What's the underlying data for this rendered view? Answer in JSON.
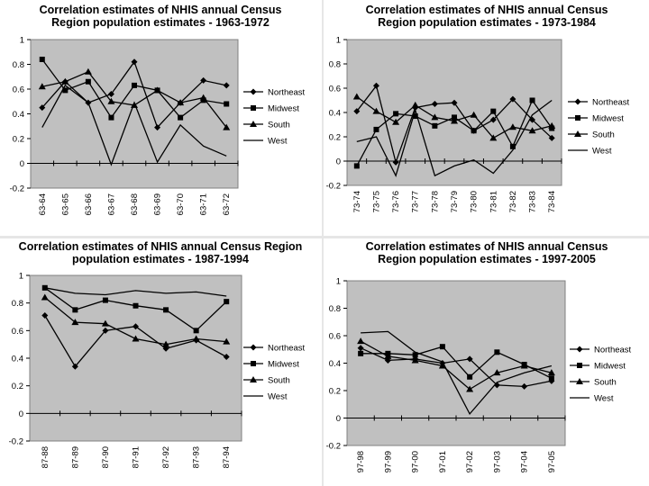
{
  "chart_data": [
    {
      "type": "line",
      "title_lines": [
        "Correlation estimates of NHIS annual Census",
        "Region population estimates - 1963-1972"
      ],
      "categories": [
        "63-64",
        "63-65",
        "63-66",
        "63-67",
        "63-68",
        "63-69",
        "63-70",
        "63-71",
        "63-72"
      ],
      "ylim": [
        -0.2,
        1
      ],
      "yticks": [
        "-0.2",
        "0",
        "0.2",
        "0.4",
        "0.6",
        "0.8",
        "1"
      ],
      "series": [
        {
          "name": "Northeast",
          "marker": "diamond",
          "values": [
            0.45,
            0.66,
            0.49,
            0.56,
            0.82,
            0.29,
            0.49,
            0.67,
            0.63
          ]
        },
        {
          "name": "Midwest",
          "marker": "square",
          "values": [
            0.84,
            0.59,
            0.66,
            0.37,
            0.63,
            0.59,
            0.37,
            0.51,
            0.48
          ]
        },
        {
          "name": "South",
          "marker": "triangle",
          "values": [
            0.62,
            0.66,
            0.74,
            0.5,
            0.47,
            0.59,
            0.49,
            0.53,
            0.29
          ]
        },
        {
          "name": "West",
          "marker": "none",
          "values": [
            0.29,
            0.63,
            0.49,
            -0.01,
            0.49,
            0.01,
            0.31,
            0.14,
            0.06
          ]
        }
      ]
    },
    {
      "type": "line",
      "title_lines": [
        "Correlation estimates of NHIS annual Census",
        "Region population estimates - 1973-1984"
      ],
      "categories": [
        "73-74",
        "73-75",
        "73-76",
        "73-77",
        "73-78",
        "73-79",
        "73-80",
        "73-81",
        "73-82",
        "73-83",
        "73-84"
      ],
      "ylim": [
        -0.2,
        1
      ],
      "yticks": [
        "-0.2",
        "0",
        "0.2",
        "0.4",
        "0.6",
        "0.8",
        "1"
      ],
      "series": [
        {
          "name": "Northeast",
          "marker": "diamond",
          "values": [
            0.41,
            0.62,
            -0.01,
            0.44,
            0.47,
            0.48,
            0.25,
            0.34,
            0.51,
            0.34,
            0.19
          ]
        },
        {
          "name": "Midwest",
          "marker": "square",
          "values": [
            -0.04,
            0.26,
            0.39,
            0.37,
            0.29,
            0.36,
            0.25,
            0.41,
            0.12,
            0.5,
            0.27
          ]
        },
        {
          "name": "South",
          "marker": "triangle",
          "values": [
            0.53,
            0.41,
            0.32,
            0.46,
            0.36,
            0.33,
            0.38,
            0.19,
            0.28,
            0.25,
            0.29
          ]
        },
        {
          "name": "West",
          "marker": "none",
          "values": [
            0.16,
            0.2,
            -0.12,
            0.42,
            -0.12,
            -0.04,
            0.01,
            -0.1,
            0.09,
            0.38,
            0.5
          ]
        }
      ]
    },
    {
      "type": "line",
      "title_lines": [
        "Correlation estimates of NHIS annual Census Region",
        "population estimates - 1987-1994"
      ],
      "categories": [
        "87-88",
        "87-89",
        "87-90",
        "87-91",
        "87-92",
        "87-93",
        "87-94"
      ],
      "ylim": [
        -0.2,
        1
      ],
      "yticks": [
        "-0.2",
        "0",
        "0.2",
        "0.4",
        "0.6",
        "0.8",
        "1"
      ],
      "series": [
        {
          "name": "Northeast",
          "marker": "diamond",
          "values": [
            0.71,
            0.34,
            0.6,
            0.63,
            0.47,
            0.53,
            0.41
          ]
        },
        {
          "name": "Midwest",
          "marker": "square",
          "values": [
            0.91,
            0.75,
            0.82,
            0.78,
            0.75,
            0.6,
            0.81
          ]
        },
        {
          "name": "South",
          "marker": "triangle",
          "values": [
            0.84,
            0.66,
            0.65,
            0.54,
            0.5,
            0.54,
            0.52
          ]
        },
        {
          "name": "West",
          "marker": "none",
          "values": [
            0.91,
            0.87,
            0.86,
            0.89,
            0.87,
            0.88,
            0.85
          ]
        }
      ]
    },
    {
      "type": "line",
      "title_lines": [
        "Correlation estimates of NHIS annual Census",
        "Region population estimates - 1997-2005"
      ],
      "categories": [
        "97-98",
        "97-99",
        "97-00",
        "97-01",
        "97-02",
        "97-03",
        "97-04",
        "97-05"
      ],
      "ylim": [
        -0.2,
        1
      ],
      "yticks": [
        "-0.2",
        "0",
        "0.2",
        "0.4",
        "0.6",
        "0.8",
        "1"
      ],
      "series": [
        {
          "name": "Northeast",
          "marker": "diamond",
          "values": [
            0.51,
            0.42,
            0.43,
            0.4,
            0.43,
            0.24,
            0.23,
            0.27
          ]
        },
        {
          "name": "Midwest",
          "marker": "square",
          "values": [
            0.47,
            0.47,
            0.46,
            0.52,
            0.3,
            0.48,
            0.39,
            0.29
          ]
        },
        {
          "name": "South",
          "marker": "triangle",
          "values": [
            0.56,
            0.45,
            0.42,
            0.38,
            0.21,
            0.33,
            0.38,
            0.33
          ]
        },
        {
          "name": "West",
          "marker": "none",
          "values": [
            0.62,
            0.63,
            0.48,
            0.41,
            0.03,
            0.26,
            0.33,
            0.38
          ]
        }
      ]
    }
  ]
}
